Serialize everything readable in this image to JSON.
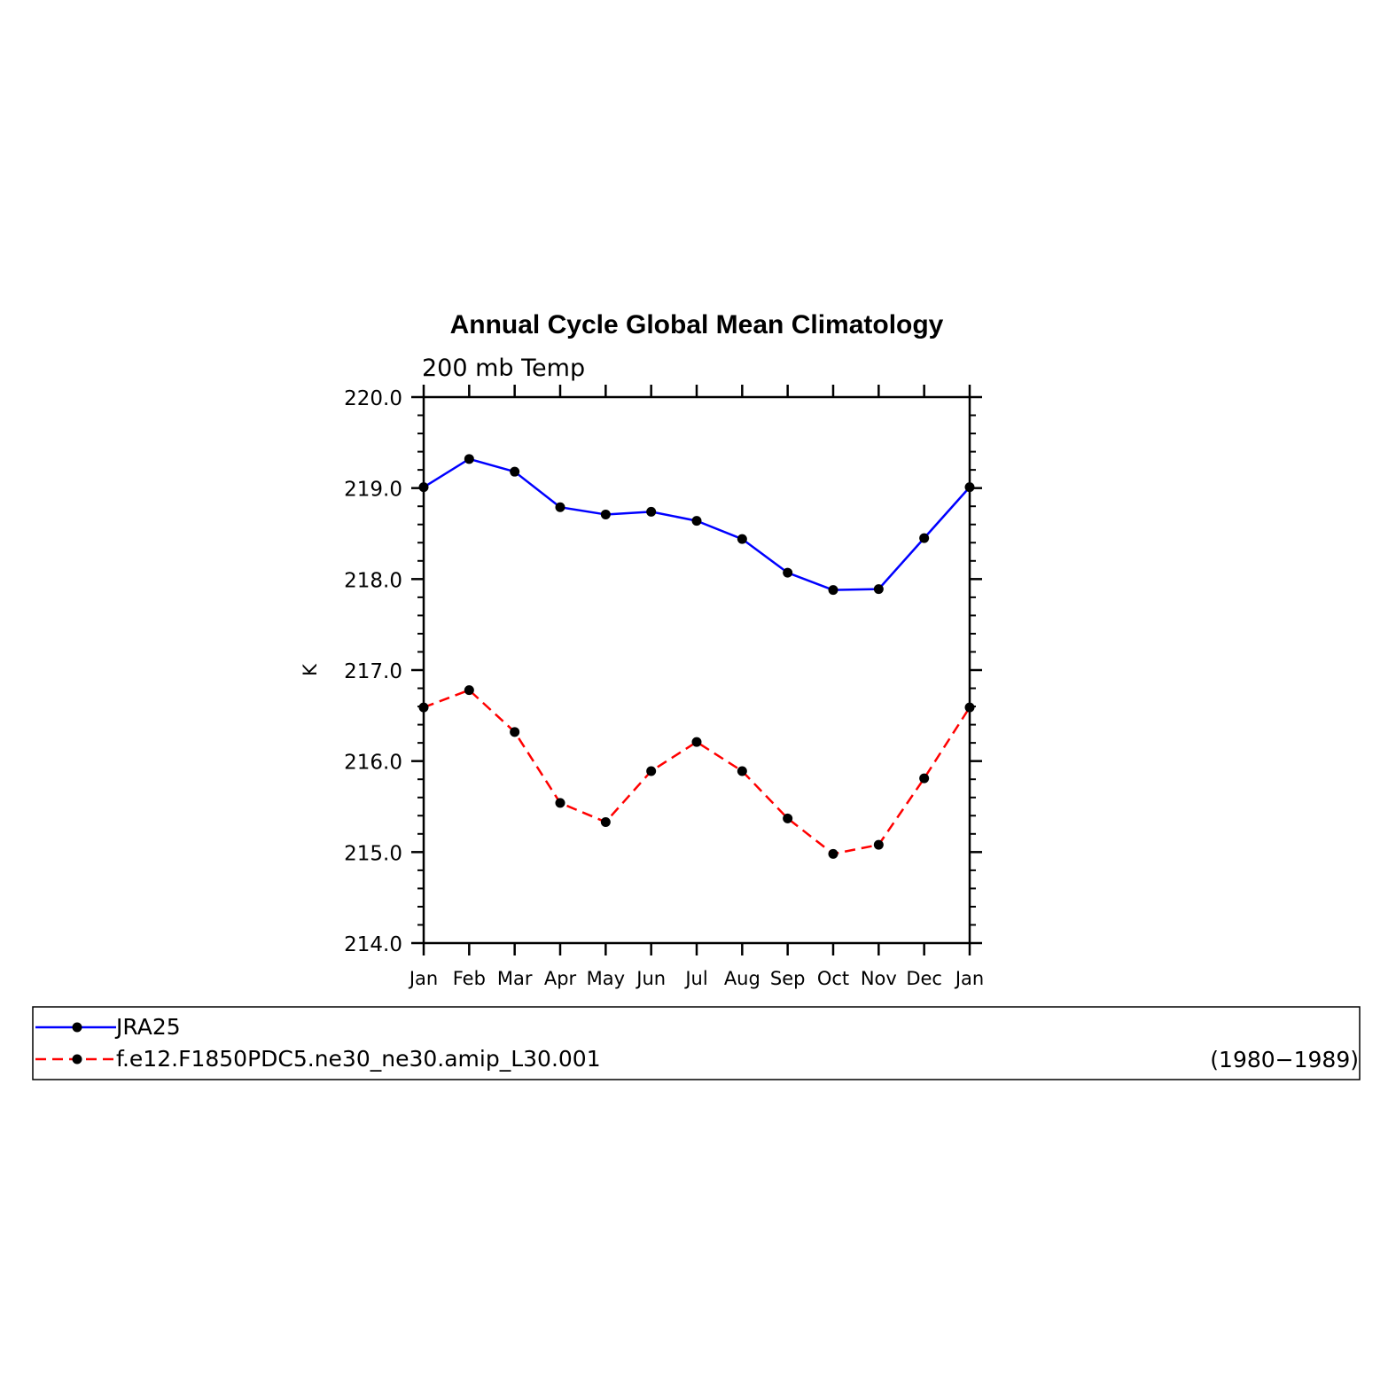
{
  "chart_data": {
    "type": "line",
    "title": "Annual Cycle Global Mean Climatology",
    "subtitle": "200 mb Temp",
    "ylabel": "K",
    "xlabel": "",
    "ylim": [
      214.0,
      220.0
    ],
    "yticks": [
      "214.0",
      "215.0",
      "216.0",
      "217.0",
      "218.0",
      "219.0",
      "220.0"
    ],
    "categories": [
      "Jan",
      "Feb",
      "Mar",
      "Apr",
      "May",
      "Jun",
      "Jul",
      "Aug",
      "Sep",
      "Oct",
      "Nov",
      "Dec",
      "Jan"
    ],
    "series": [
      {
        "name": "JRA25",
        "color": "#0000ff",
        "line_style": "solid",
        "marker": "filled-circle",
        "values": [
          219.01,
          219.32,
          219.18,
          218.79,
          218.71,
          218.74,
          218.64,
          218.44,
          218.07,
          217.88,
          217.89,
          218.45,
          219.01
        ]
      },
      {
        "name": "f.e12.F1850PDC5.ne30_ne30.amip_L30.001",
        "color": "#ff0000",
        "line_style": "dashed",
        "marker": "filled-circle",
        "values": [
          216.59,
          216.78,
          216.32,
          215.54,
          215.33,
          215.89,
          216.21,
          215.89,
          215.37,
          214.98,
          215.08,
          215.81,
          216.59
        ]
      }
    ],
    "legend_note": "(1980−1989)",
    "grid": false,
    "legend_placement": "bottom"
  }
}
